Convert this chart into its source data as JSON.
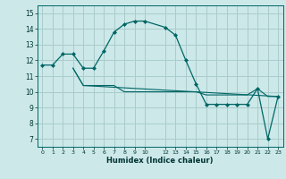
{
  "xlabel": "Humidex (Indice chaleur)",
  "bg_color": "#cce8e8",
  "grid_color": "#aacccc",
  "line_color": "#006666",
  "text_color": "#003333",
  "xlim": [
    -0.5,
    23.5
  ],
  "ylim": [
    6.5,
    15.5
  ],
  "xtick_positions": [
    0,
    1,
    2,
    3,
    4,
    5,
    6,
    7,
    8,
    9,
    10,
    12,
    13,
    14,
    15,
    16,
    17,
    18,
    19,
    20,
    21,
    22,
    23
  ],
  "xtick_labels": [
    "0",
    "1",
    "2",
    "3",
    "4",
    "5",
    "6",
    "7",
    "8",
    "9",
    "10",
    "12",
    "13",
    "14",
    "15",
    "16",
    "17",
    "18",
    "19",
    "20",
    "21",
    "22",
    "23"
  ],
  "ytick_positions": [
    7,
    8,
    9,
    10,
    11,
    12,
    13,
    14,
    15
  ],
  "ytick_labels": [
    "7",
    "8",
    "9",
    "10",
    "11",
    "12",
    "13",
    "14",
    "15"
  ],
  "series0_x": [
    0,
    1,
    2,
    3,
    4,
    5,
    6,
    7,
    8,
    9,
    10,
    12,
    13,
    14,
    15,
    16,
    17,
    18,
    19,
    20,
    21,
    22,
    23
  ],
  "series0_y": [
    11.7,
    11.7,
    12.4,
    12.4,
    11.5,
    11.5,
    12.6,
    13.8,
    14.3,
    14.5,
    14.5,
    14.1,
    13.6,
    12.0,
    10.5,
    9.2,
    9.2,
    9.2,
    9.2,
    9.2,
    10.2,
    7.0,
    9.7
  ],
  "series1_x": [
    3,
    4,
    23
  ],
  "series1_y": [
    11.5,
    10.4,
    9.7
  ],
  "series2_x": [
    3,
    4,
    5,
    6,
    7,
    8,
    9,
    10,
    12,
    13,
    14,
    15,
    16,
    17,
    18,
    19,
    20,
    21,
    22,
    23
  ],
  "series2_y": [
    11.5,
    10.4,
    10.4,
    10.4,
    10.4,
    10.0,
    10.0,
    10.0,
    10.0,
    10.0,
    10.0,
    10.0,
    9.8,
    9.8,
    9.8,
    9.8,
    9.8,
    10.2,
    9.7,
    9.7
  ]
}
